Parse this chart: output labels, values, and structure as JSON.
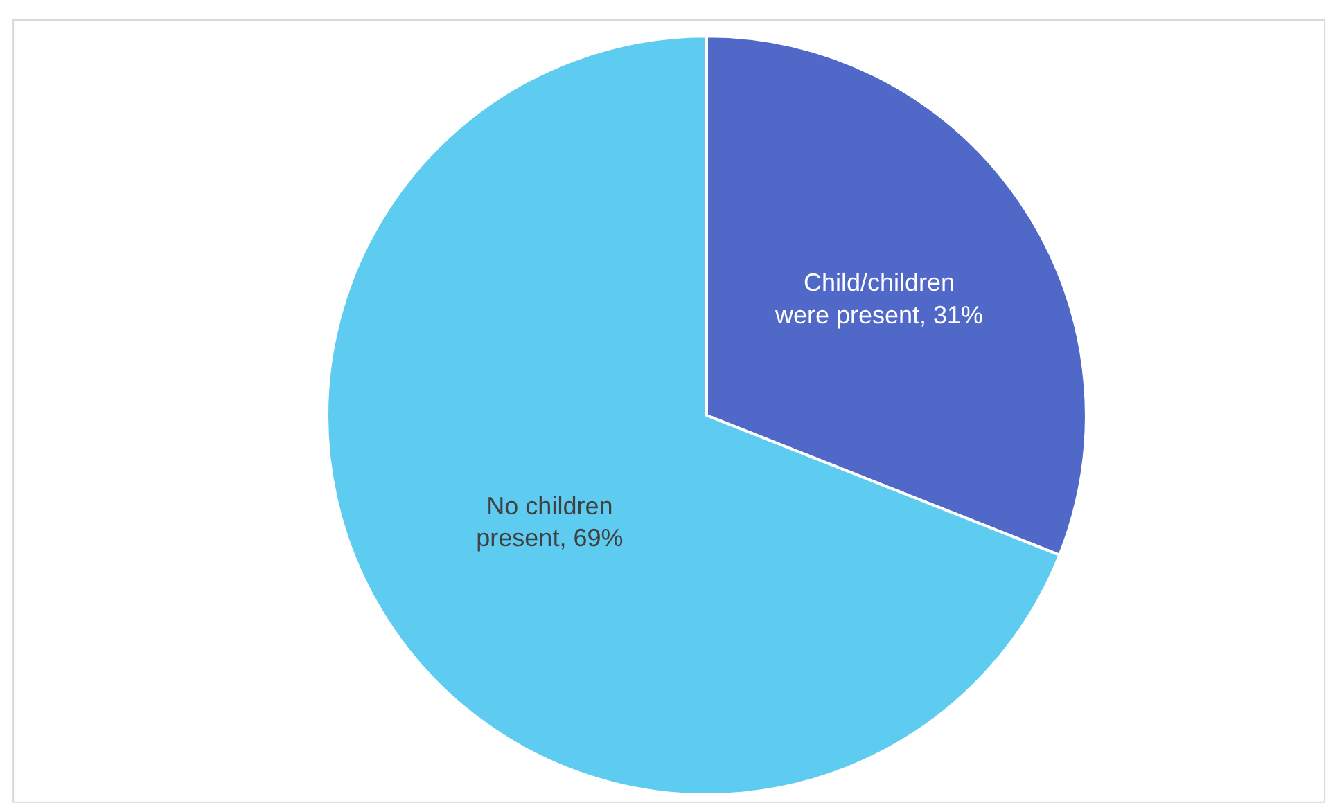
{
  "chart_data": {
    "type": "pie",
    "categories": [
      "Child/children were present",
      "No children present"
    ],
    "values": [
      31,
      69
    ],
    "colors": [
      "#5068c8",
      "#5ecbf1"
    ],
    "value_labels": [
      "31%",
      "69%"
    ],
    "legend": false
  }
}
